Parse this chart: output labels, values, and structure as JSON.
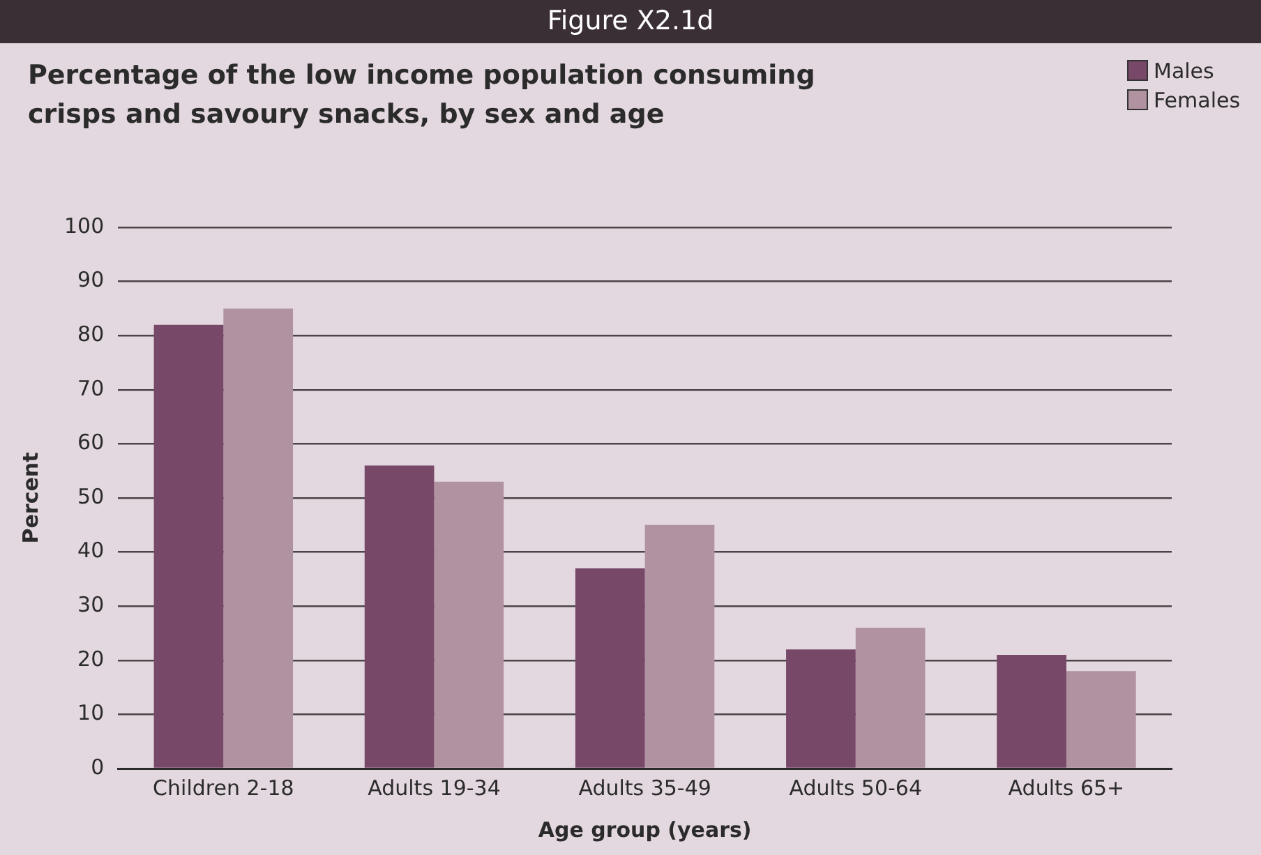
{
  "chart_data": {
    "type": "bar",
    "title": "Percentage of the low income population consuming crisps and savoury snacks, by sex and age",
    "xlabel": "Age group (years)",
    "ylabel": "Percent",
    "annotations": [
      "Figure X2.1d"
    ],
    "categories": [
      "Children 2-18",
      "Adults 19-34",
      "Adults 35-49",
      "Adults 50-64",
      "Adults 65+"
    ],
    "series": [
      {
        "name": "Males",
        "color": "#784868",
        "values": [
          82,
          56,
          37,
          22,
          21
        ]
      },
      {
        "name": "Females",
        "color": "#b092a0",
        "values": [
          85,
          53,
          45,
          26,
          18
        ]
      }
    ],
    "ylim": [
      0,
      100
    ],
    "yticks": [
      0,
      10,
      20,
      30,
      40,
      50,
      60,
      70,
      80,
      90,
      100
    ],
    "grid": "y",
    "legend": "top right"
  }
}
